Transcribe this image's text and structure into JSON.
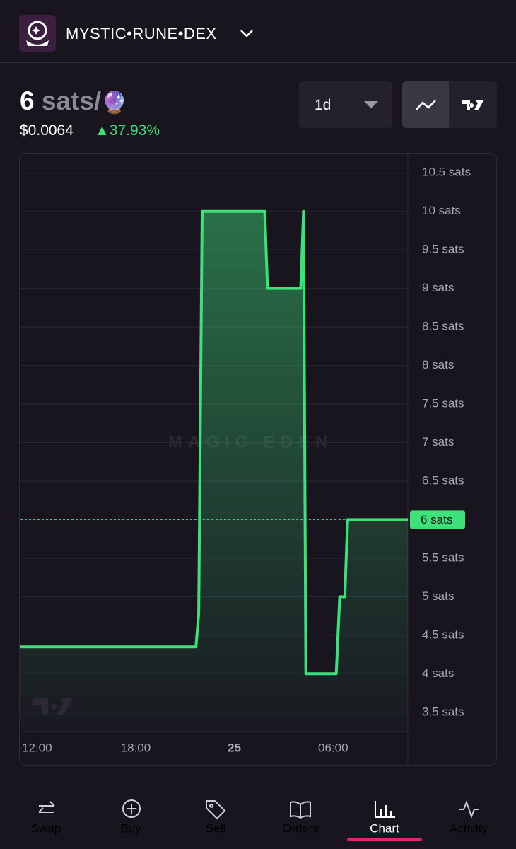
{
  "header": {
    "title": "MYSTIC•RUNE•DEX"
  },
  "price": {
    "amount": "6",
    "unit": "sats/",
    "emoji": "🔮",
    "usd": "$0.0064",
    "change": "▲37.93%"
  },
  "controls": {
    "interval": "1d"
  },
  "chart_data": {
    "type": "line",
    "watermark": "MAGIC EDEN",
    "x": [
      11.0,
      21.66,
      21.83,
      22.04,
      25.84,
      26.01,
      28.03,
      28.2,
      28.34,
      30.19,
      30.4,
      30.71,
      30.88,
      34.54
    ],
    "series": [
      {
        "name": "MYSTIC•RUNE•DEX",
        "color": "#3ee07a",
        "values": [
          4.35,
          4.35,
          4.78,
          10,
          10,
          9,
          9,
          10,
          4,
          4,
          5,
          5,
          6,
          6
        ]
      }
    ],
    "xlim": [
      11.0,
      34.54
    ],
    "xticks": [
      {
        "value": 12,
        "label": "12:00"
      },
      {
        "value": 18,
        "label": "18:00"
      },
      {
        "value": 24,
        "label": "25"
      },
      {
        "value": 30,
        "label": "06:00"
      }
    ],
    "ylim": [
      3.25,
      10.75
    ],
    "yticks": [
      {
        "value": 3.5,
        "label": "3.5 sats"
      },
      {
        "value": 4,
        "label": "4 sats"
      },
      {
        "value": 4.5,
        "label": "4.5 sats"
      },
      {
        "value": 5,
        "label": "5 sats"
      },
      {
        "value": 5.5,
        "label": "5.5 sats"
      },
      {
        "value": 6,
        "label": "6 sats"
      },
      {
        "value": 6.5,
        "label": "6.5 sats"
      },
      {
        "value": 7,
        "label": "7 sats"
      },
      {
        "value": 7.5,
        "label": "7.5 sats"
      },
      {
        "value": 8,
        "label": "8 sats"
      },
      {
        "value": 8.5,
        "label": "8.5 sats"
      },
      {
        "value": 9,
        "label": "9 sats"
      },
      {
        "value": 9.5,
        "label": "9.5 sats"
      },
      {
        "value": 10,
        "label": "10 sats"
      },
      {
        "value": 10.5,
        "label": "10.5 sats"
      }
    ],
    "grid": true,
    "last_price": {
      "value": 6,
      "label": "6 sats"
    }
  },
  "nav": [
    "Swap",
    "Buy",
    "Sell",
    "Orders",
    "Chart",
    "Activity"
  ],
  "active_tab": "Chart"
}
